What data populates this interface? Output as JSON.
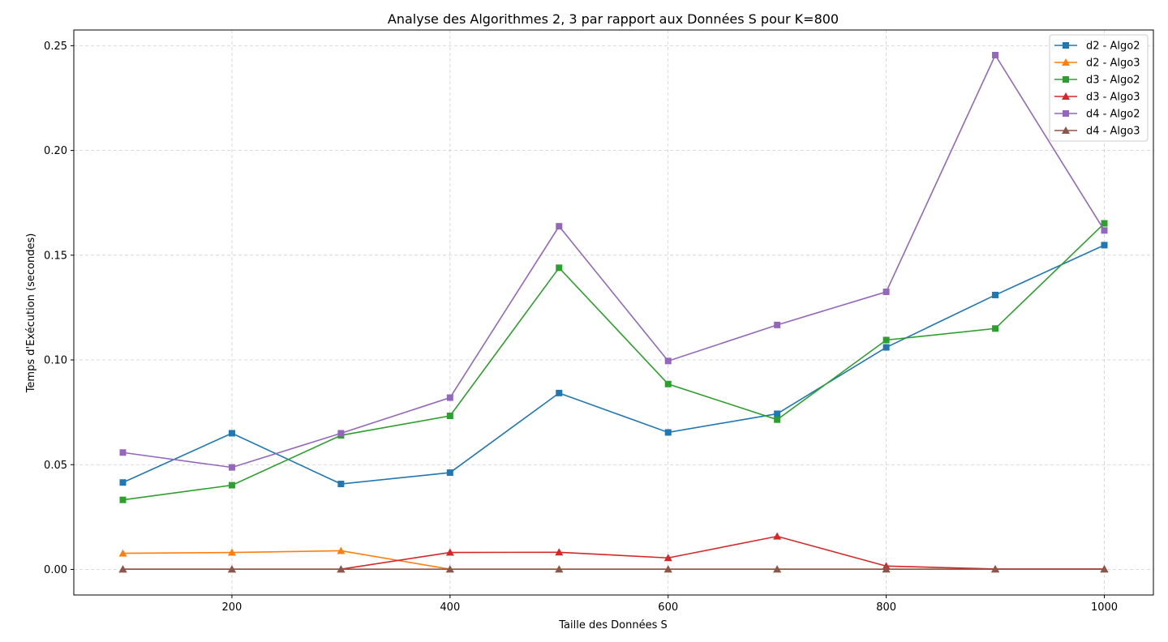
{
  "chart_data": {
    "type": "line",
    "title": "Analyse des Algorithmes 2, 3 par rapport aux Données S pour K=800",
    "xlabel": "Taille des Données S",
    "ylabel": "Temps d'Exécution (secondes)",
    "xlim": [
      55,
      1045
    ],
    "ylim": [
      -0.0122,
      0.2575
    ],
    "xticks": [
      200,
      400,
      600,
      800,
      1000
    ],
    "xtick_labels": [
      "200",
      "400",
      "600",
      "800",
      "1000"
    ],
    "yticks": [
      0.0,
      0.05,
      0.1,
      0.15,
      0.2,
      0.25
    ],
    "ytick_labels": [
      "0.00",
      "0.05",
      "0.10",
      "0.15",
      "0.20",
      "0.25"
    ],
    "grid": true,
    "legend_position": "top-right",
    "x": [
      100,
      200,
      300,
      400,
      500,
      600,
      700,
      800,
      900,
      1000
    ],
    "series": [
      {
        "name": "d2 - Algo2",
        "color": "#1f77b4",
        "marker": "square",
        "values": [
          0.0415,
          0.065,
          0.0408,
          0.0462,
          0.0842,
          0.0654,
          0.0743,
          0.106,
          0.131,
          0.1548
        ]
      },
      {
        "name": "d2 - Algo3",
        "color": "#ff7f0e",
        "marker": "triangle",
        "values": [
          0.0077,
          0.0081,
          0.0089,
          0.0001,
          0.0001,
          0.0001,
          0.0001,
          0.0001,
          0.0001,
          0.0001
        ]
      },
      {
        "name": "d3 - Algo2",
        "color": "#2ca02c",
        "marker": "square",
        "values": [
          0.0332,
          0.0402,
          0.064,
          0.0733,
          0.144,
          0.0885,
          0.0715,
          0.1095,
          0.115,
          0.1652
        ]
      },
      {
        "name": "d3 - Algo3",
        "color": "#d62728",
        "marker": "triangle",
        "values": [
          0.0001,
          0.0001,
          0.0001,
          0.0081,
          0.0082,
          0.0055,
          0.0158,
          0.0016,
          0.0002,
          0.0002
        ]
      },
      {
        "name": "d4 - Algo2",
        "color": "#9467bd",
        "marker": "square",
        "values": [
          0.0558,
          0.0487,
          0.065,
          0.082,
          0.1638,
          0.0995,
          0.1167,
          0.1325,
          0.2455,
          0.1618
        ]
      },
      {
        "name": "d4 - Algo3",
        "color": "#8c564b",
        "marker": "triangle",
        "values": [
          0.0001,
          0.0001,
          0.0001,
          0.0001,
          0.0001,
          0.0001,
          0.0001,
          0.0001,
          0.0001,
          0.0001
        ]
      }
    ]
  }
}
